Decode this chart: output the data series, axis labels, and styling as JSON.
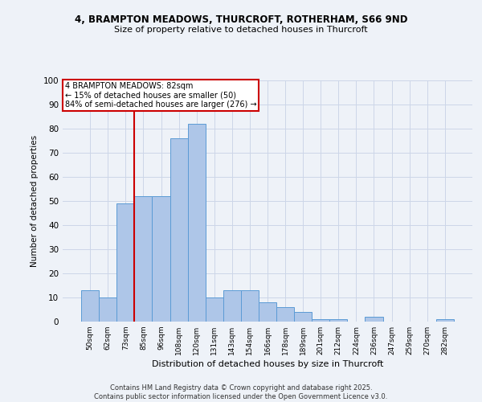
{
  "title1": "4, BRAMPTON MEADOWS, THURCROFT, ROTHERHAM, S66 9ND",
  "title2": "Size of property relative to detached houses in Thurcroft",
  "xlabel": "Distribution of detached houses by size in Thurcroft",
  "ylabel": "Number of detached properties",
  "bar_labels": [
    "50sqm",
    "62sqm",
    "73sqm",
    "85sqm",
    "96sqm",
    "108sqm",
    "120sqm",
    "131sqm",
    "143sqm",
    "154sqm",
    "166sqm",
    "178sqm",
    "189sqm",
    "201sqm",
    "212sqm",
    "224sqm",
    "236sqm",
    "247sqm",
    "259sqm",
    "270sqm",
    "282sqm"
  ],
  "bar_values": [
    13,
    10,
    49,
    52,
    52,
    76,
    82,
    10,
    13,
    13,
    8,
    6,
    4,
    1,
    1,
    0,
    2,
    0,
    0,
    0,
    1
  ],
  "bar_color": "#aec6e8",
  "bar_edge_color": "#5b9bd5",
  "property_line_index": 3,
  "annotation_line1": "4 BRAMPTON MEADOWS: 82sqm",
  "annotation_line2": "← 15% of detached houses are smaller (50)",
  "annotation_line3": "84% of semi-detached houses are larger (276) →",
  "annotation_box_color": "#ffffff",
  "annotation_box_edge_color": "#cc0000",
  "red_line_color": "#cc0000",
  "grid_color": "#ccd6e8",
  "background_color": "#eef2f8",
  "ylim": [
    0,
    100
  ],
  "yticks": [
    0,
    10,
    20,
    30,
    40,
    50,
    60,
    70,
    80,
    90,
    100
  ],
  "footer_line1": "Contains HM Land Registry data © Crown copyright and database right 2025.",
  "footer_line2": "Contains public sector information licensed under the Open Government Licence v3.0."
}
